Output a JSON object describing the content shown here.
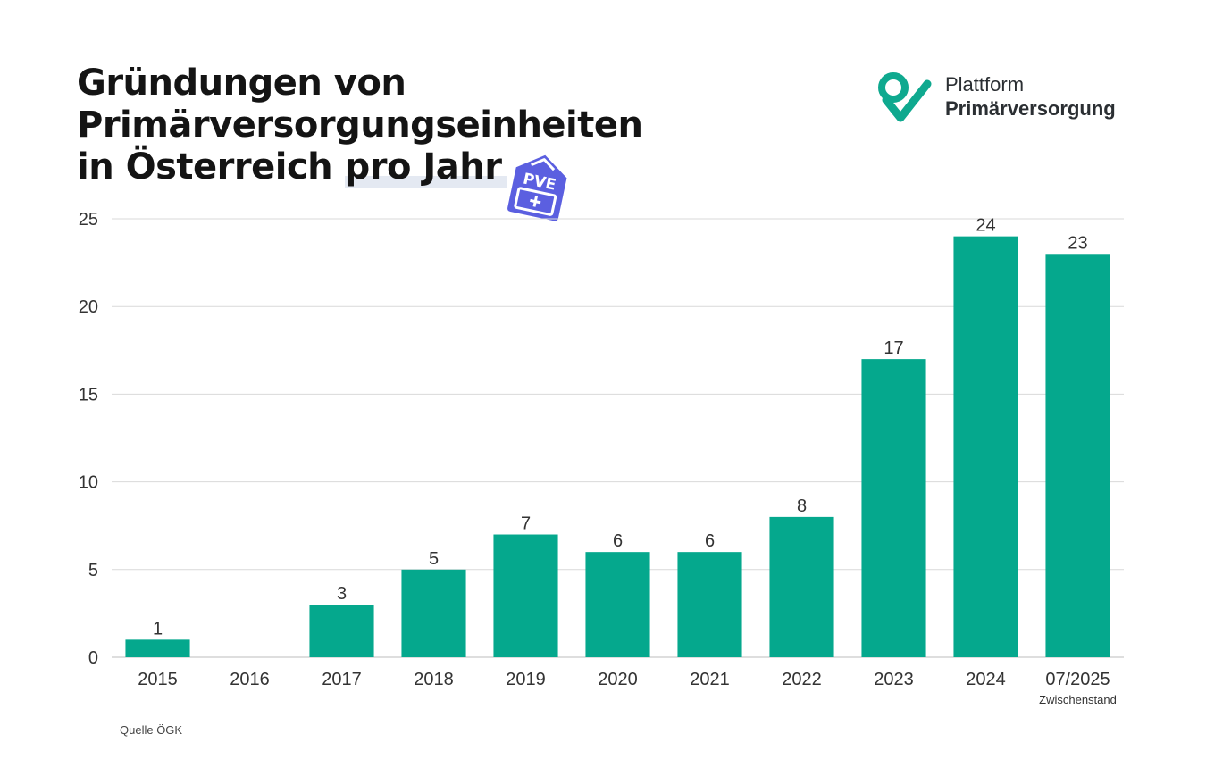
{
  "title": {
    "line1": "Gründungen von",
    "line2": "Primärversorgungseinheiten",
    "line3a": "in Österreich ",
    "line3b": "pro Jahr"
  },
  "logo": {
    "line1": "Plattform",
    "line2": "Primärversorgung"
  },
  "badge": {
    "text": "PVE"
  },
  "source": "Quelle ÖGK",
  "colors": {
    "bar": "#05a88d",
    "grid": "#d9d9d9",
    "badge": "#5b5fe0",
    "logo": "#0fa98f"
  },
  "chart_data": {
    "type": "bar",
    "categories": [
      "2015",
      "2016",
      "2017",
      "2018",
      "2019",
      "2020",
      "2021",
      "2022",
      "2023",
      "2024",
      "07/2025"
    ],
    "category_sublabels": [
      "",
      "",
      "",
      "",
      "",
      "",
      "",
      "",
      "",
      "",
      "Zwischenstand"
    ],
    "values": [
      1,
      0,
      3,
      5,
      7,
      6,
      6,
      8,
      17,
      24,
      23
    ],
    "data_labels": [
      "1",
      "",
      "3",
      "5",
      "7",
      "6",
      "6",
      "8",
      "17",
      "24",
      "23"
    ],
    "ylim": [
      0,
      25
    ],
    "yticks": [
      0,
      5,
      10,
      15,
      20,
      25
    ],
    "grid": true,
    "xlabel": "",
    "ylabel": ""
  }
}
